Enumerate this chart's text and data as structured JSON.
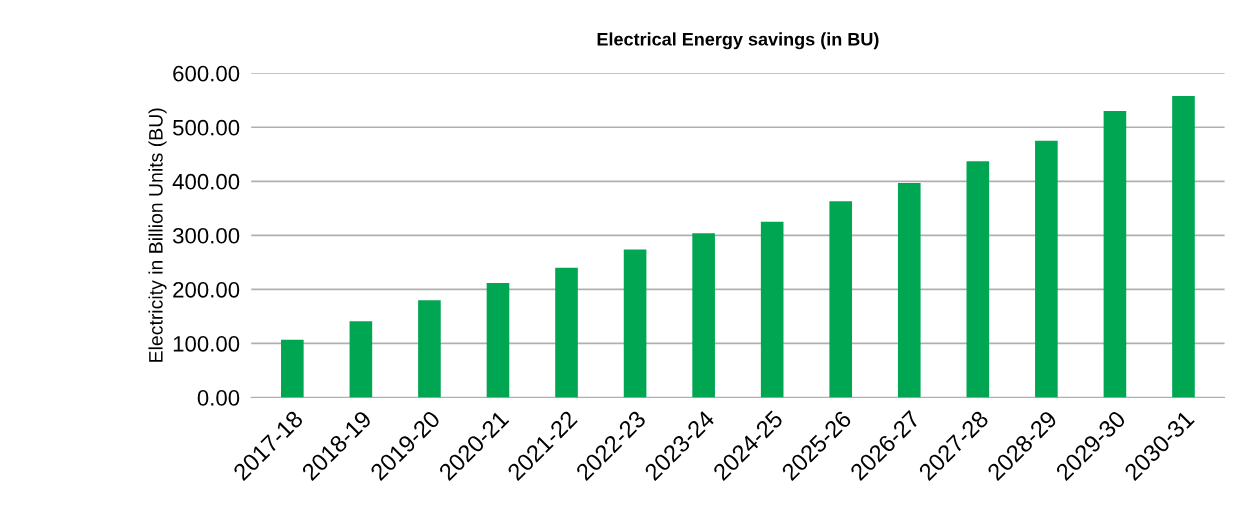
{
  "chart_data": {
    "type": "bar",
    "title": "Electrical Energy savings (in BU)",
    "ylabel": "Electricity in Billion Units (BU)",
    "categories": [
      "2017-18",
      "2018-19",
      "2019-20",
      "2020-21",
      "2021-22",
      "2022-23",
      "2023-24",
      "2024-25",
      "2025-26",
      "2026-27",
      "2027-28",
      "2028-29",
      "2029-30",
      "2030-31"
    ],
    "values": [
      107,
      141,
      180,
      212,
      240,
      274,
      304,
      325,
      363,
      397,
      437,
      475,
      530,
      558
    ],
    "color": "#00a651",
    "ylim": [
      0,
      600
    ],
    "yticks": [
      {
        "value": 0,
        "label": "0.00"
      },
      {
        "value": 100,
        "label": "100.00"
      },
      {
        "value": 200,
        "label": "200.00"
      },
      {
        "value": 300,
        "label": "300.00"
      },
      {
        "value": 400,
        "label": "400.00"
      },
      {
        "value": 500,
        "label": "500.00"
      },
      {
        "value": 600,
        "label": "600.00"
      }
    ],
    "grid": "y",
    "legend": false
  }
}
